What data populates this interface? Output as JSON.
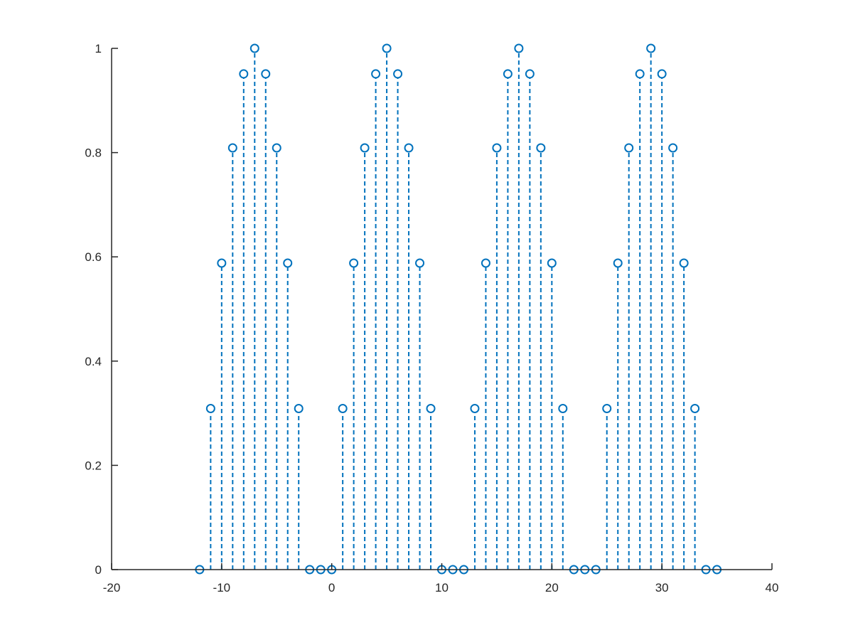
{
  "chart_data": {
    "type": "stem",
    "title": "",
    "xlabel": "",
    "ylabel": "",
    "xlim": [
      -20,
      40
    ],
    "ylim": [
      0,
      1
    ],
    "xticks": [
      -20,
      -10,
      0,
      10,
      20,
      30,
      40
    ],
    "yticks": [
      0,
      0.2,
      0.4,
      0.6,
      0.8,
      1
    ],
    "xtick_labels": [
      "-20",
      "-10",
      "0",
      "10",
      "20",
      "30",
      "40"
    ],
    "ytick_labels": [
      "0",
      "0.2",
      "0.4",
      "0.6",
      "0.8",
      "1"
    ],
    "grid": false,
    "legend": "none",
    "line_style": "dashed",
    "marker": "circle",
    "series_color": "#0072BD",
    "axis_color": "#262626",
    "series": [
      {
        "x": [
          -12,
          -11,
          -10,
          -9,
          -8,
          -7,
          -6,
          -5,
          -4,
          -3,
          -2,
          -1,
          0,
          1,
          2,
          3,
          4,
          5,
          6,
          7,
          8,
          9,
          10,
          11,
          12,
          13,
          14,
          15,
          16,
          17,
          18,
          19,
          20,
          21,
          22,
          23,
          24,
          25,
          26,
          27,
          28,
          29,
          30,
          31,
          32,
          33,
          34,
          35
        ],
        "y": [
          0,
          0.309,
          0.588,
          0.809,
          0.951,
          1,
          0.951,
          0.809,
          0.588,
          0.309,
          0,
          0,
          0,
          0.309,
          0.588,
          0.809,
          0.951,
          1,
          0.951,
          0.809,
          0.588,
          0.309,
          0,
          0,
          0,
          0.309,
          0.588,
          0.809,
          0.951,
          1,
          0.951,
          0.809,
          0.588,
          0.309,
          0,
          0,
          0,
          0.309,
          0.588,
          0.809,
          0.951,
          1,
          0.951,
          0.809,
          0.588,
          0.309,
          0,
          0
        ]
      }
    ]
  }
}
